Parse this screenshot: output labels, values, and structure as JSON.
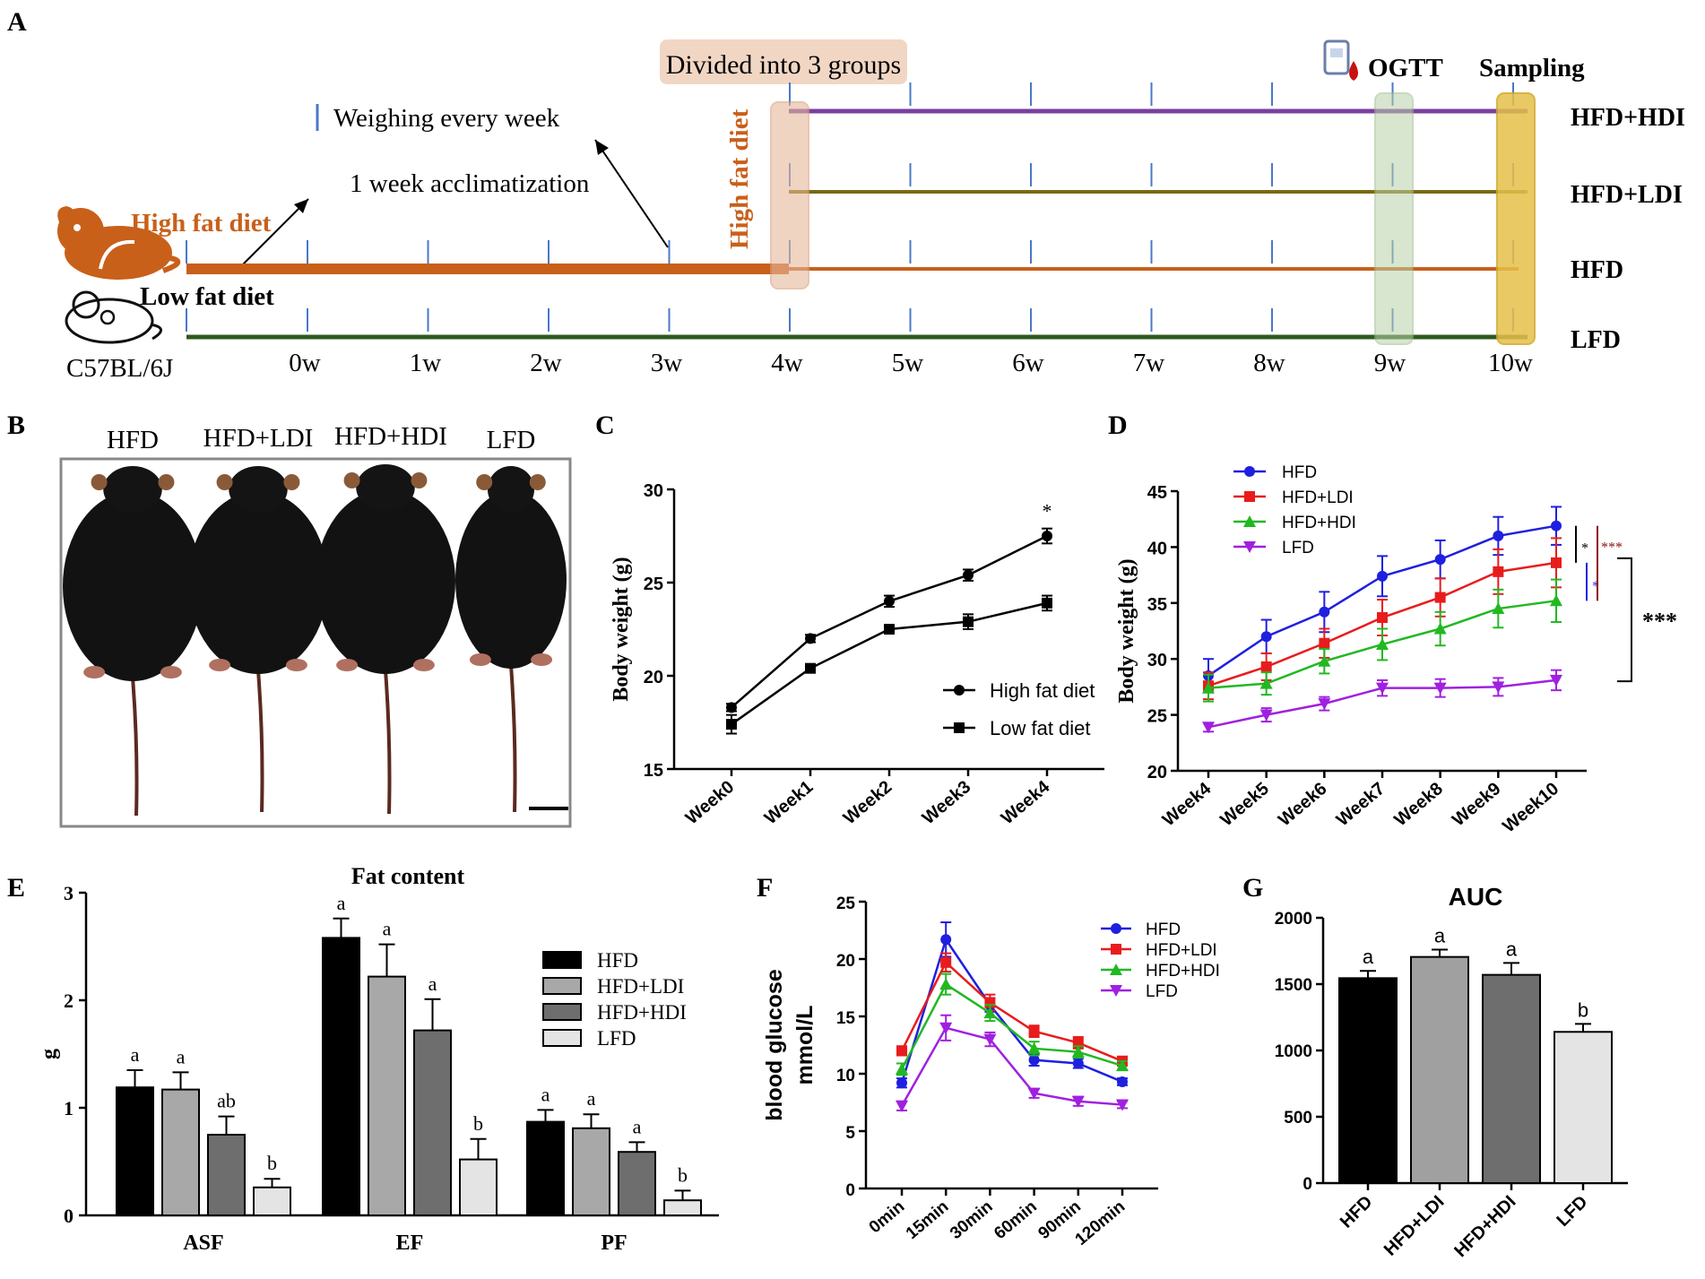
{
  "figure": {
    "colors": {
      "hfd": "#1f1fe0",
      "ldi": "#e81c1c",
      "hdi": "#22b822",
      "lfd": "#a020e0",
      "orange": "#c8601a",
      "timeline_hdi": "#7a3fa0",
      "timeline_ldi": "#7a6a10",
      "timeline_lfd": "#2e5a1e",
      "tick_blue": "#4a78c8"
    }
  },
  "panelA": {
    "label": "A",
    "strain": "C57BL/6J",
    "high_fat_label": "High fat diet",
    "low_fat_label": "Low fat diet",
    "vertical_label": "High fat diet",
    "divided_label": "Divided into 3 groups",
    "weighing_label": "Weighing every week",
    "acclimatization_label": "1 week acclimatization",
    "ogtt_label": "OGTT",
    "sampling_label": "Sampling",
    "groups": [
      "HFD+HDI",
      "HFD+LDI",
      "HFD",
      "LFD"
    ],
    "weeks": [
      "0w",
      "1w",
      "2w",
      "3w",
      "4w",
      "5w",
      "6w",
      "7w",
      "8w",
      "9w",
      "10w"
    ],
    "icons": [
      "rat-icon",
      "mouse-icon",
      "blood-glucose-icon"
    ]
  },
  "panelB": {
    "label": "B",
    "groups": [
      "HFD",
      "HFD+LDI",
      "HFD+HDI",
      "LFD"
    ]
  },
  "chart_data": [
    {
      "id": "C",
      "type": "line",
      "x": [
        "Week0",
        "Week1",
        "Week2",
        "Week3",
        "Week4"
      ],
      "series": [
        {
          "name": "High fat diet",
          "values": [
            18.3,
            22.0,
            24.0,
            25.4,
            27.5
          ],
          "errors": [
            0.2,
            0.2,
            0.3,
            0.3,
            0.4
          ]
        },
        {
          "name": "Low fat diet",
          "values": [
            17.4,
            20.4,
            22.5,
            22.9,
            23.9
          ],
          "errors": [
            0.5,
            0.2,
            0.2,
            0.4,
            0.4
          ]
        }
      ],
      "ylabel": "Body weight (g)",
      "ylim": [
        15,
        30
      ],
      "yticks": [
        15,
        20,
        25,
        30
      ],
      "annotations": [
        "*"
      ],
      "legend": "bottom-right"
    },
    {
      "id": "D",
      "type": "line",
      "x": [
        "Week4",
        "Week5",
        "Week6",
        "Week7",
        "Week8",
        "Week9",
        "Week10"
      ],
      "series": [
        {
          "name": "HFD",
          "values": [
            28.5,
            32.0,
            34.2,
            37.4,
            38.9,
            41.0,
            41.9
          ],
          "errors": [
            1.5,
            1.5,
            1.8,
            1.8,
            1.7,
            1.7,
            1.7
          ]
        },
        {
          "name": "HFD+LDI",
          "values": [
            27.6,
            29.3,
            31.4,
            33.7,
            35.5,
            37.8,
            38.6
          ],
          "errors": [
            1.2,
            1.2,
            1.3,
            1.6,
            1.7,
            2.0,
            2.2
          ]
        },
        {
          "name": "HFD+HDI",
          "values": [
            27.4,
            27.8,
            29.8,
            31.3,
            32.7,
            34.5,
            35.2
          ],
          "errors": [
            1.2,
            1.0,
            1.1,
            1.4,
            1.5,
            1.7,
            1.9
          ]
        },
        {
          "name": "LFD",
          "values": [
            23.9,
            25.0,
            26.0,
            27.4,
            27.4,
            27.5,
            28.1
          ],
          "errors": [
            0.4,
            0.6,
            0.6,
            0.7,
            0.8,
            0.8,
            0.9
          ]
        }
      ],
      "ylabel": "Body weight (g)",
      "ylim": [
        20,
        45
      ],
      "yticks": [
        20,
        25,
        30,
        35,
        40,
        45
      ],
      "annotations": [
        "*",
        "*",
        "***",
        "***"
      ],
      "legend": "top-left"
    },
    {
      "id": "E",
      "type": "bar",
      "title": "Fat content",
      "categories": [
        "ASF",
        "EF",
        "PF"
      ],
      "series": [
        {
          "name": "HFD",
          "values": [
            1.19,
            2.58,
            0.87
          ],
          "errors": [
            0.16,
            0.18,
            0.11
          ],
          "letters": [
            "a",
            "a",
            "a"
          ],
          "fill": "#000000"
        },
        {
          "name": "HFD+LDI",
          "values": [
            1.17,
            2.22,
            0.81
          ],
          "errors": [
            0.16,
            0.3,
            0.13
          ],
          "letters": [
            "a",
            "a",
            "a"
          ],
          "fill": "#a8a8a8"
        },
        {
          "name": "HFD+HDI",
          "values": [
            0.75,
            1.72,
            0.59
          ],
          "errors": [
            0.17,
            0.29,
            0.09
          ],
          "letters": [
            "ab",
            "a",
            "a"
          ],
          "fill": "#6e6e6e"
        },
        {
          "name": "LFD",
          "values": [
            0.26,
            0.52,
            0.14
          ],
          "errors": [
            0.08,
            0.19,
            0.09
          ],
          "letters": [
            "b",
            "b",
            "b"
          ],
          "fill": "#e4e4e4"
        }
      ],
      "ylabel": "g",
      "ylim": [
        0,
        3
      ],
      "yticks": [
        0,
        1,
        2,
        3
      ],
      "legend": "right"
    },
    {
      "id": "F",
      "type": "line",
      "x": [
        "0min",
        "15min",
        "30min",
        "60min",
        "90min",
        "120min"
      ],
      "series": [
        {
          "name": "HFD",
          "values": [
            9.2,
            21.7,
            16.0,
            11.2,
            10.9,
            9.3
          ],
          "errors": [
            0.4,
            1.5,
            0.6,
            0.5,
            0.4,
            0.3
          ]
        },
        {
          "name": "HFD+LDI",
          "values": [
            12.0,
            19.7,
            16.2,
            13.7,
            12.7,
            11.1
          ],
          "errors": [
            0.4,
            0.8,
            0.7,
            0.5,
            0.5,
            0.4
          ]
        },
        {
          "name": "HFD+HDI",
          "values": [
            10.4,
            17.8,
            15.3,
            12.2,
            11.9,
            10.7
          ],
          "errors": [
            0.5,
            0.9,
            0.7,
            0.6,
            0.5,
            0.4
          ]
        },
        {
          "name": "LFD",
          "values": [
            7.2,
            14.0,
            13.0,
            8.3,
            7.6,
            7.3
          ],
          "errors": [
            0.4,
            1.1,
            0.6,
            0.4,
            0.4,
            0.3
          ]
        }
      ],
      "ylabel": "blood glucose mmol/L",
      "ylim": [
        0,
        25
      ],
      "yticks": [
        0,
        5,
        10,
        15,
        20,
        25
      ],
      "legend": "top-right"
    },
    {
      "id": "G",
      "type": "bar",
      "title": "AUC",
      "categories": [
        "HFD",
        "HFD+LDI",
        "HFD+HDI",
        "LFD"
      ],
      "values": [
        1545,
        1705,
        1570,
        1140
      ],
      "errors": [
        55,
        55,
        90,
        60
      ],
      "letters": [
        "a",
        "a",
        "a",
        "b"
      ],
      "fills": [
        "#000000",
        "#a0a0a0",
        "#6e6e6e",
        "#e4e4e4"
      ],
      "ylim": [
        0,
        2000
      ],
      "yticks": [
        0,
        500,
        1000,
        1500,
        2000
      ]
    }
  ]
}
